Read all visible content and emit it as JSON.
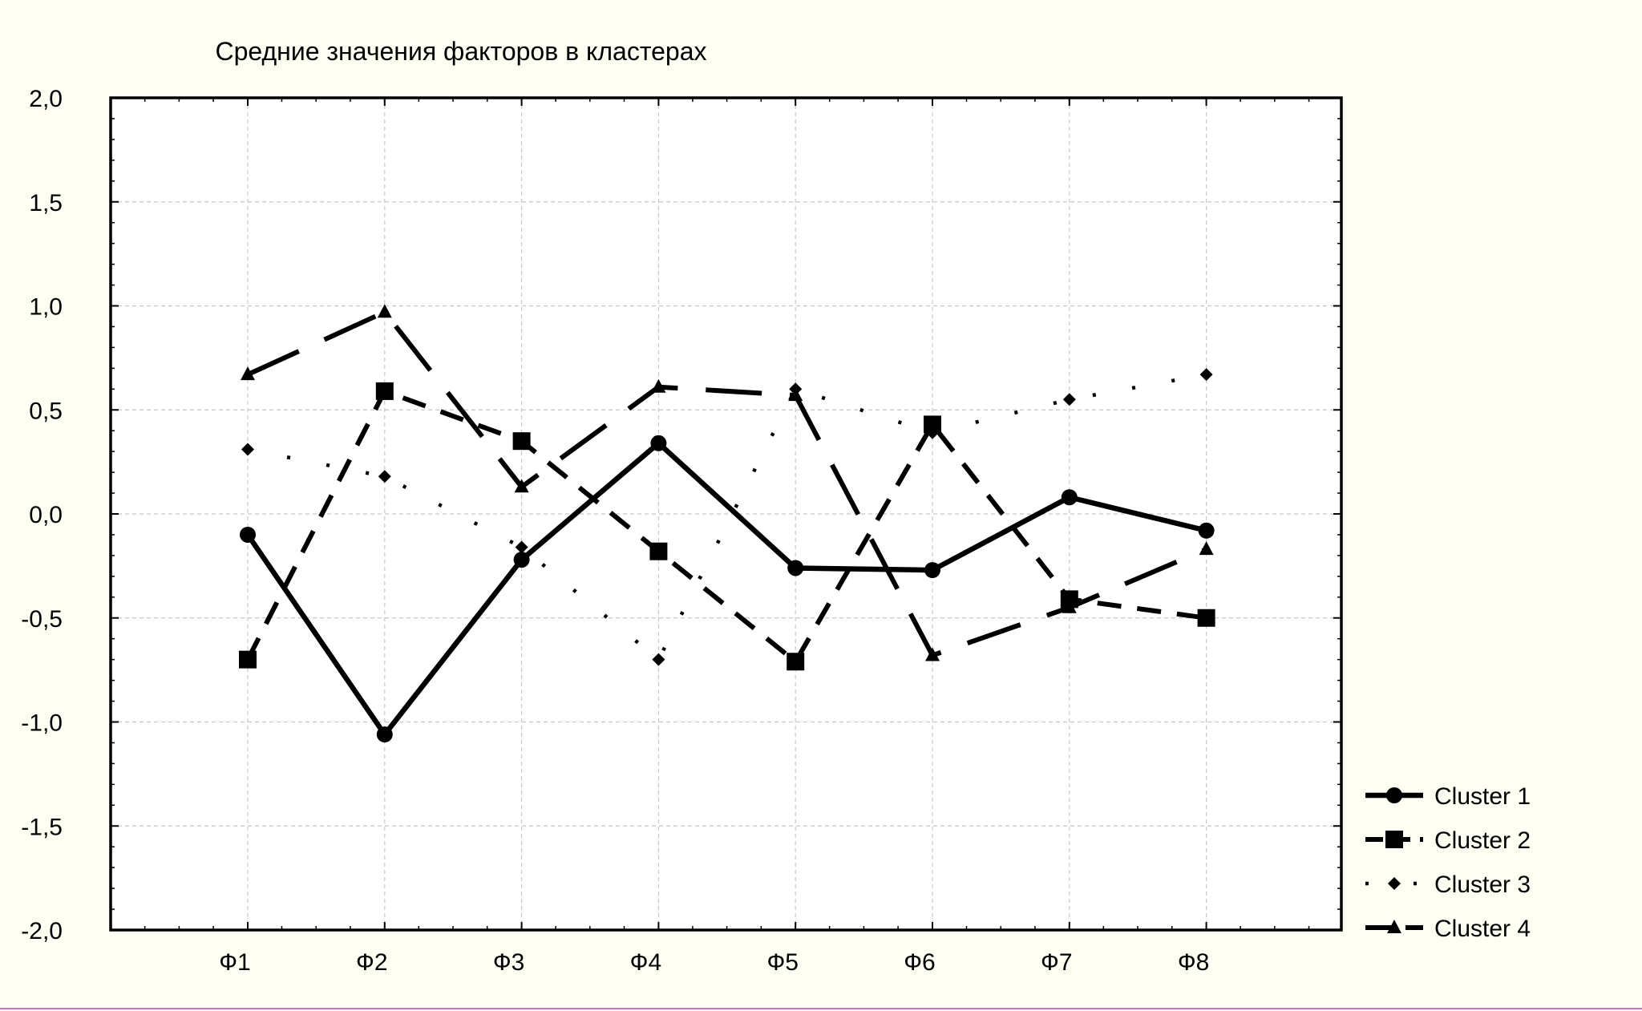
{
  "chart_data": {
    "type": "line",
    "title": "Средние значения факторов в кластерах",
    "xlabel": "",
    "ylabel": "",
    "categories": [
      "Ф1",
      "Ф2",
      "Ф3",
      "Ф4",
      "Ф5",
      "Ф6",
      "Ф7",
      "Ф8"
    ],
    "ylim": [
      -2.0,
      2.0
    ],
    "yticks": [
      "-2,0",
      "-1,5",
      "-1,0",
      "-0,5",
      "0,0",
      "0,5",
      "1,0",
      "1,5",
      "2,0"
    ],
    "grid": true,
    "legend_position": "bottom-right",
    "series": [
      {
        "name": "Cluster 1",
        "values": [
          -0.1,
          -1.06,
          -0.22,
          0.34,
          -0.26,
          -0.27,
          0.08,
          -0.08
        ],
        "marker": "circle",
        "line_style": "solid"
      },
      {
        "name": "Cluster 2",
        "values": [
          -0.7,
          0.59,
          0.35,
          -0.18,
          -0.71,
          0.43,
          -0.41,
          -0.5
        ],
        "marker": "square",
        "line_style": "dashed"
      },
      {
        "name": "Cluster 3",
        "values": [
          0.31,
          0.18,
          -0.16,
          -0.7,
          0.6,
          0.39,
          0.55,
          0.67
        ],
        "marker": "diamond",
        "line_style": "dotted"
      },
      {
        "name": "Cluster 4",
        "values": [
          0.67,
          0.97,
          0.13,
          0.61,
          0.57,
          -0.68,
          -0.45,
          -0.17
        ],
        "marker": "triangle",
        "line_style": "longdash"
      }
    ]
  }
}
